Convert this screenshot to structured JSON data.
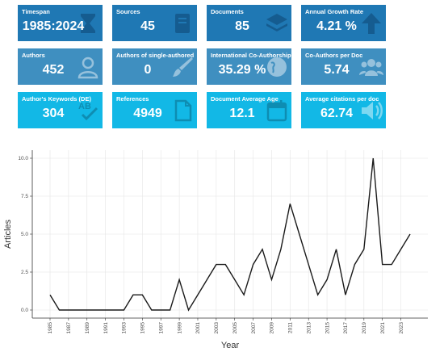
{
  "cards": [
    {
      "title": "Timespan",
      "value": "1985:2024",
      "icon": "hourglass-icon",
      "row": 1
    },
    {
      "title": "Sources",
      "value": "45",
      "icon": "book-icon",
      "row": 1
    },
    {
      "title": "Documents",
      "value": "85",
      "icon": "layers-icon",
      "row": 1
    },
    {
      "title": "Annual Growth Rate",
      "value": "4.21 %",
      "icon": "arrow-up-icon",
      "row": 1
    },
    {
      "title": "Authors",
      "value": "452",
      "icon": "user-icon",
      "row": 2
    },
    {
      "title": "Authors of single-authored",
      "value": "0",
      "icon": "pen-brush-icon",
      "row": 2
    },
    {
      "title": "International Co-Authorship",
      "value": "35.29 %",
      "icon": "globe-icon",
      "row": 2
    },
    {
      "title": "Co-Authors per Doc",
      "value": "5.74",
      "icon": "users-icon",
      "row": 2
    },
    {
      "title": "Author's Keywords (DE)",
      "value": "304",
      "icon": "spellcheck-icon",
      "row": 3
    },
    {
      "title": "References",
      "value": "4949",
      "icon": "file-icon",
      "row": 3
    },
    {
      "title": "Document Average Age",
      "value": "12.1",
      "icon": "calendar-icon",
      "row": 3
    },
    {
      "title": "Average citations per doc",
      "value": "62.74",
      "icon": "volume-icon",
      "row": 3
    }
  ],
  "colors": {
    "row1": "#1f78b4",
    "row2": "#3f8fc0",
    "row3": "#12b8e6",
    "line": "#1a1a1a",
    "grid": "#e5e5e5"
  },
  "chart_data": {
    "type": "line",
    "xlabel": "Year",
    "ylabel": "Articles",
    "xlim": [
      1985,
      2024
    ],
    "ylim": [
      0,
      10
    ],
    "yticks": [
      0.0,
      2.5,
      5.0,
      7.5,
      10.0
    ],
    "ytick_labels": [
      "0.0",
      "2.5",
      "5.0",
      "7.5",
      "10.0"
    ],
    "xtick_labels": [
      "1985",
      "1987",
      "1989",
      "1991",
      "1993",
      "1995",
      "1997",
      "1999",
      "2001",
      "2003",
      "2005",
      "2007",
      "2009",
      "2011",
      "2013",
      "2015",
      "2017",
      "2019",
      "2021",
      "2023"
    ],
    "grid": true,
    "series": [
      {
        "x": [
          1985,
          1986,
          1987,
          1988,
          1989,
          1990,
          1991,
          1992,
          1993,
          1994,
          1995,
          1996,
          1997,
          1998,
          1999,
          2000,
          2001,
          2002,
          2003,
          2004,
          2005,
          2006,
          2007,
          2008,
          2009,
          2010,
          2011,
          2012,
          2013,
          2014,
          2015,
          2016,
          2017,
          2018,
          2019,
          2020,
          2021,
          2022,
          2023,
          2024
        ],
        "y": [
          1,
          0,
          0,
          0,
          0,
          0,
          0,
          0,
          0,
          1,
          1,
          0,
          0,
          0,
          2,
          0,
          1,
          2,
          3,
          3,
          2,
          1,
          3,
          4,
          2,
          4,
          7,
          5,
          3,
          1,
          2,
          4,
          1,
          3,
          4,
          10,
          3,
          3,
          4,
          5
        ]
      }
    ]
  }
}
